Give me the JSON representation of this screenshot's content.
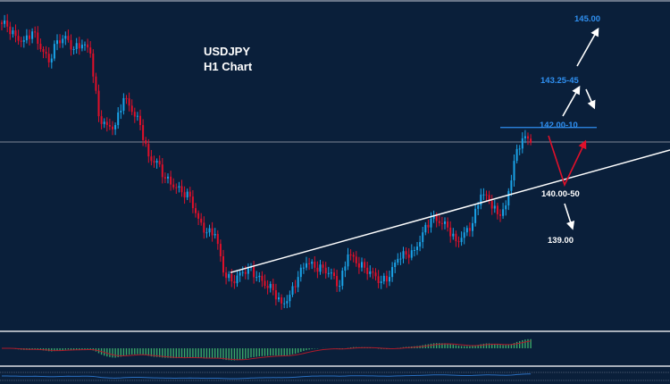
{
  "chart_data": {
    "type": "candlestick",
    "title": "USDJPY",
    "subtitle": "H1 Chart",
    "closes": [
      144.56,
      144.33,
      144.22,
      144.44,
      144.0,
      143.67,
      144.22,
      144.33,
      144.0,
      144.11,
      143.89,
      142.33,
      142.11,
      142.11,
      142.78,
      142.44,
      142.11,
      141.33,
      141.22,
      140.78,
      140.56,
      140.44,
      140.33,
      139.78,
      139.44,
      139.4,
      138.44,
      138.22,
      138.44,
      138.56,
      138.33,
      138.11,
      138.0,
      137.67,
      137.89,
      138.33,
      138.67,
      138.56,
      138.56,
      138.44,
      138.11,
      138.89,
      138.67,
      138.56,
      138.44,
      138.22,
      138.33,
      138.78,
      138.89,
      139.0,
      139.44,
      139.78,
      139.67,
      139.56,
      139.22,
      139.44,
      139.67,
      140.38,
      140.22,
      139.89,
      140.11,
      141.22,
      141.78,
      141.67
    ],
    "current_price_line": 141.69,
    "trendline": {
      "start_price": 138.44,
      "end_price": 141.49
    },
    "levels": [
      {
        "label": "145.00",
        "color": "#2f8ff0"
      },
      {
        "label": "143.25-45",
        "color": "#2f8ff0"
      },
      {
        "label": "142.00-10",
        "color": "#2f8ff0",
        "price": 142.05
      },
      {
        "label": "140.00-50",
        "color": "#ffffff"
      },
      {
        "label": "139.00",
        "color": "#ffffff"
      }
    ],
    "colors": {
      "up": "#1aa3e8",
      "down": "#e0102a",
      "background": "#0a1f3a",
      "histogram": "#3aa86a",
      "signal": "#b01a2a",
      "oscillator": "#2a6fc0"
    },
    "indicators": [
      "MACD histogram with signal line",
      "oscillator line"
    ],
    "grid": false
  }
}
